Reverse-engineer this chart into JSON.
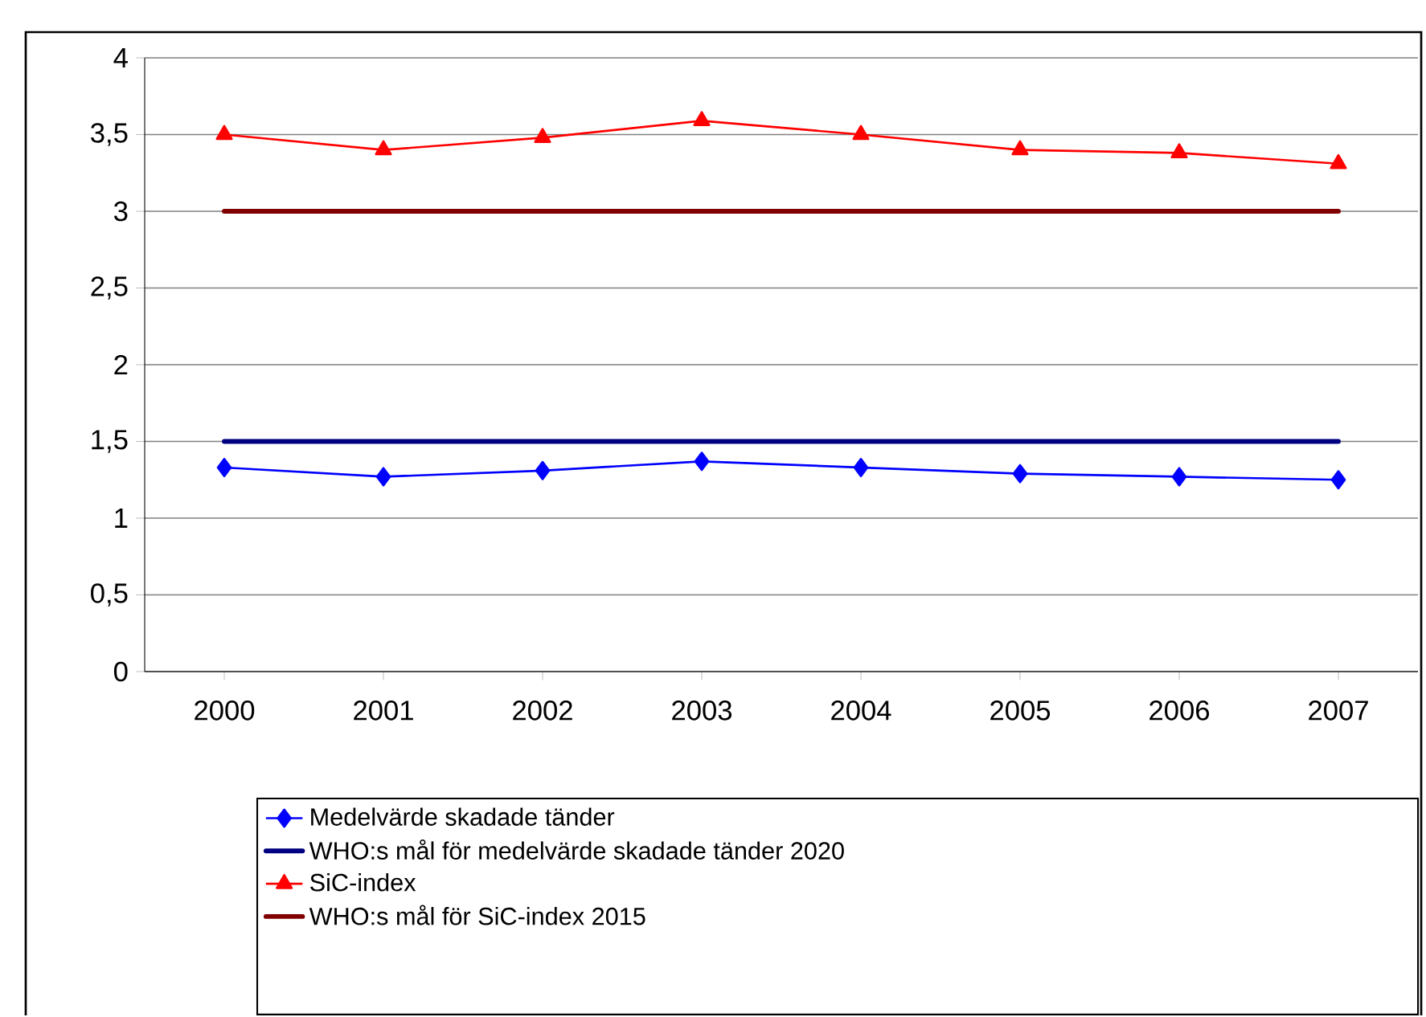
{
  "chart_data": {
    "type": "line",
    "categories": [
      "2000",
      "2001",
      "2002",
      "2003",
      "2004",
      "2005",
      "2006",
      "2007"
    ],
    "series": [
      {
        "name": "Medelvärde skadade tänder",
        "color": "#0000ff",
        "marker": "diamond",
        "values": [
          1.33,
          1.27,
          1.31,
          1.37,
          1.33,
          1.29,
          1.27,
          1.25
        ]
      },
      {
        "name": "WHO:s mål för medelvärde skadade tänder 2020",
        "color": "#000080",
        "marker": "none",
        "values": [
          1.5,
          1.5,
          1.5,
          1.5,
          1.5,
          1.5,
          1.5,
          1.5
        ]
      },
      {
        "name": "SiC-index",
        "color": "#ff0000",
        "marker": "triangle",
        "values": [
          3.5,
          3.4,
          3.48,
          3.59,
          3.5,
          3.4,
          3.38,
          3.31
        ]
      },
      {
        "name": "WHO:s mål för SiC-index 2015",
        "color": "#800000",
        "marker": "none",
        "values": [
          3,
          3,
          3,
          3,
          3,
          3,
          3,
          3
        ]
      }
    ],
    "ylim": [
      0,
      4
    ],
    "yticks": [
      0,
      {
        "value": 0.5,
        "label": "0,5"
      },
      1,
      {
        "value": 1.5,
        "label": "1,5"
      },
      2,
      {
        "value": 2.5,
        "label": "2,5"
      },
      3,
      {
        "value": 3.5,
        "label": "3,5"
      },
      4
    ],
    "grid": "y",
    "legend": "bottom"
  }
}
